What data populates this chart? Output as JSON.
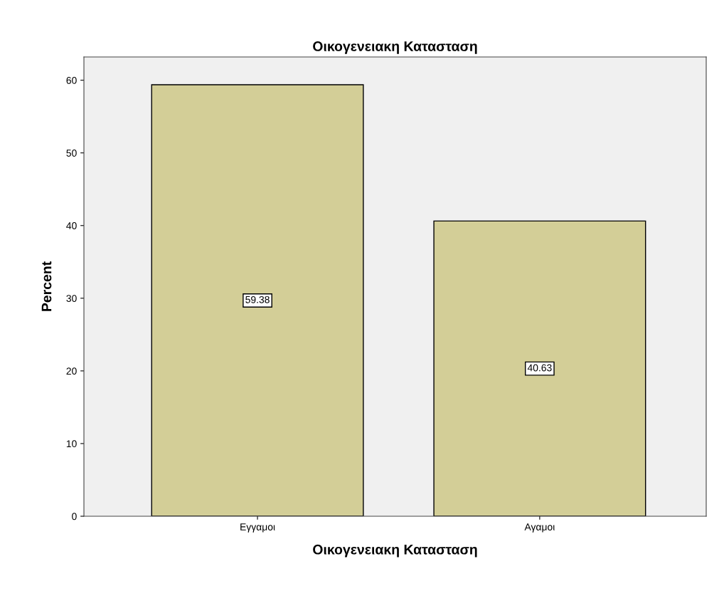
{
  "chart_data": {
    "type": "bar",
    "title": "Οικογενειακη Κατασταση",
    "xlabel": "Οικογενειακη Κατασταση",
    "ylabel": "Percent",
    "categories": [
      "Εγγαμοι",
      "Αγαμοι"
    ],
    "values": [
      59.38,
      40.63
    ],
    "color": "#d3ce97",
    "ylim": [
      0,
      63.2
    ],
    "yticks": [
      0,
      10,
      20,
      30,
      40,
      50,
      60
    ],
    "grid": false,
    "data_labels": true
  }
}
